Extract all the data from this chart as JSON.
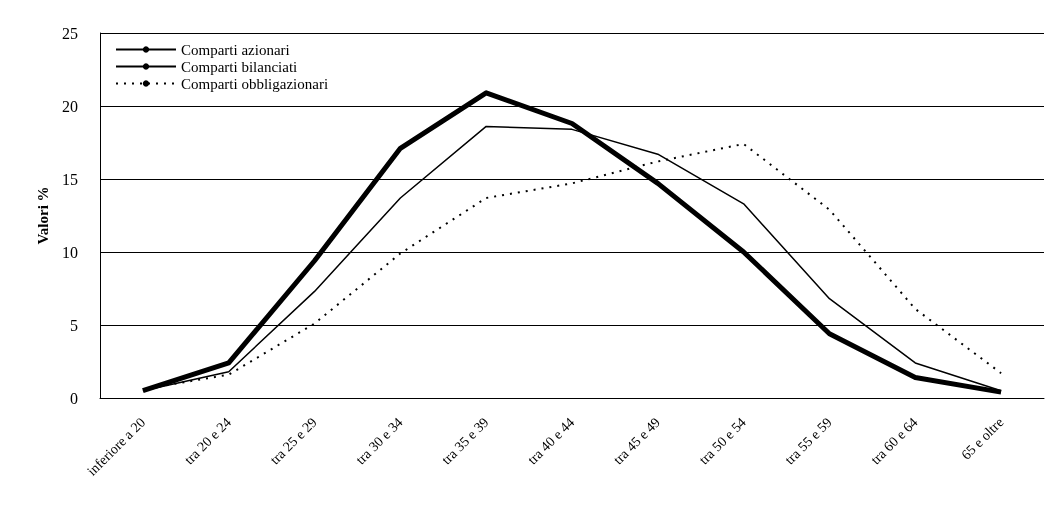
{
  "chart_data": {
    "type": "line",
    "ylabel": "Valori %",
    "categories": [
      "inferiore a 20",
      "tra 20 e 24",
      "tra 25 e 29",
      "tra 30 e 34",
      "tra 35 e 39",
      "tra 40 e 44",
      "tra 45 e 49",
      "tra 50 e 54",
      "tra 55 e 59",
      "tra 60 e 64",
      "65 e oltre"
    ],
    "series": [
      {
        "name": "Comparti azionari",
        "color": "#000000",
        "line_style": "solid",
        "values": [
          0.5,
          2.4,
          9.4,
          17.1,
          20.9,
          18.8,
          14.7,
          10.0,
          4.4,
          1.4,
          0.4
        ]
      },
      {
        "name": "Comparti bilanciati",
        "color": "#000000",
        "line_style": "solid",
        "values": [
          0.5,
          1.8,
          7.3,
          13.7,
          18.6,
          18.4,
          16.7,
          13.3,
          6.8,
          2.4,
          0.5
        ]
      },
      {
        "name": "Comparti obbligazionari",
        "color": "#000000",
        "line_style": "dotted",
        "values": [
          0.6,
          1.6,
          5.1,
          9.9,
          13.7,
          14.7,
          16.2,
          17.4,
          12.9,
          6.1,
          1.7
        ]
      }
    ],
    "ylim": [
      0,
      25
    ],
    "yticks": [
      0,
      5,
      10,
      15,
      20,
      25
    ],
    "grid": "y",
    "legend": "top left",
    "marker": "none"
  }
}
